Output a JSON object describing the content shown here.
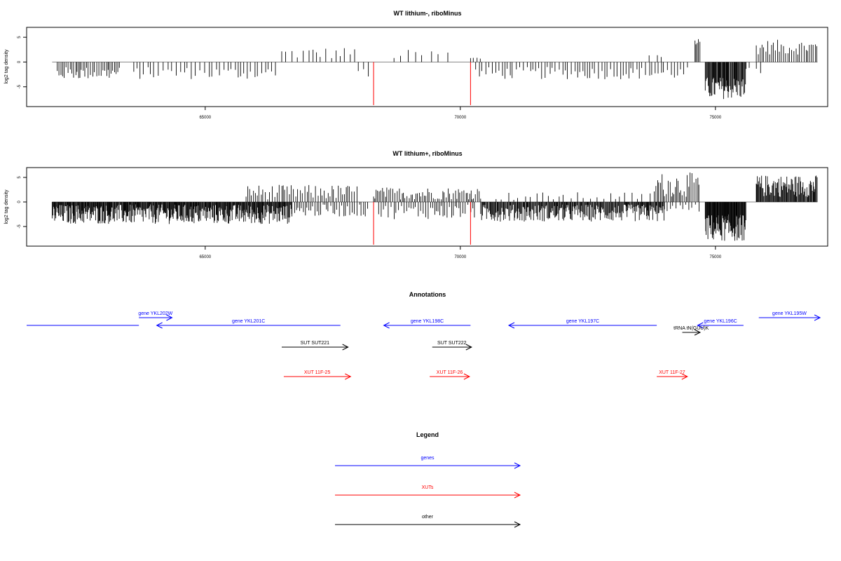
{
  "chart_data": [
    {
      "type": "bar",
      "title": "WT lithium-, riboMinus",
      "xlabel": "",
      "ylabel": "log2 tag density",
      "xlim": [
        61500,
        77200
      ],
      "ylim": [
        -9,
        7
      ],
      "xticks": [
        65000,
        70000,
        75000
      ],
      "xtick_labels": [
        "65000",
        "70000",
        "75000"
      ],
      "yticks": [
        -5,
        0,
        5
      ],
      "ytick_labels": [
        "-5",
        "0",
        "5"
      ],
      "baseline": {
        "x": [
          62000,
          77000
        ]
      },
      "markers": [
        68300,
        70200
      ],
      "series": [
        {
          "pattern": "signal_pos",
          "color": "#000000",
          "regions": [
            {
              "from": 66500,
              "to": 67950,
              "min": 0.5,
              "max": 3.0,
              "step": 90
            },
            {
              "from": 68700,
              "to": 69800,
              "min": 0.5,
              "max": 2.5,
              "step": 150
            },
            {
              "from": 70200,
              "to": 70450,
              "min": 0.5,
              "max": 1.0,
              "step": 80
            },
            {
              "from": 73700,
              "to": 74000,
              "min": 0.5,
              "max": 2.5,
              "step": 120
            },
            {
              "from": 74600,
              "to": 74700,
              "min": 3.0,
              "max": 5.0,
              "step": 30
            },
            {
              "from": 75800,
              "to": 77000,
              "min": 1.5,
              "max": 4.5,
              "step": 35
            }
          ]
        },
        {
          "pattern": "signal_neg",
          "color": "#000000",
          "regions": [
            {
              "from": 62100,
              "to": 63350,
              "min": -3.5,
              "max": -1.0,
              "step": 35
            },
            {
              "from": 63600,
              "to": 66400,
              "min": -3.5,
              "max": -1.0,
              "step": 70
            },
            {
              "from": 68000,
              "to": 68200,
              "min": -3.0,
              "max": -1.0,
              "step": 100
            },
            {
              "from": 70300,
              "to": 74500,
              "min": -3.5,
              "max": -1.0,
              "step": 60
            },
            {
              "from": 74800,
              "to": 75600,
              "min": -7.5,
              "max": -3.0,
              "step": 14
            },
            {
              "from": 75600,
              "to": 75900,
              "min": -2.5,
              "max": -1.0,
              "step": 100
            }
          ]
        }
      ]
    },
    {
      "type": "bar",
      "title": "WT lithium+, riboMinus",
      "xlabel": "",
      "ylabel": "log2 tag density",
      "xlim": [
        61500,
        77200
      ],
      "ylim": [
        -9,
        7
      ],
      "xticks": [
        65000,
        70000,
        75000
      ],
      "xtick_labels": [
        "65000",
        "70000",
        "75000"
      ],
      "yticks": [
        -5,
        0,
        5
      ],
      "ytick_labels": [
        "-5",
        "0",
        "5"
      ],
      "baseline": {
        "x": [
          62000,
          77000
        ]
      },
      "markers": [
        68300,
        70200
      ],
      "series": [
        {
          "pattern": "signal_pos",
          "color": "#000000",
          "regions": [
            {
              "from": 65800,
              "to": 68000,
              "min": 0.5,
              "max": 3.5,
              "step": 40
            },
            {
              "from": 68300,
              "to": 70400,
              "min": 0.5,
              "max": 3.0,
              "step": 35
            },
            {
              "from": 70700,
              "to": 73800,
              "min": 0.3,
              "max": 2.0,
              "step": 120
            },
            {
              "from": 73800,
              "to": 74700,
              "min": 1.0,
              "max": 6.0,
              "step": 30
            },
            {
              "from": 75800,
              "to": 77000,
              "min": 1.0,
              "max": 5.5,
              "step": 14
            }
          ]
        },
        {
          "pattern": "signal_neg",
          "color": "#000000",
          "regions": [
            {
              "from": 62000,
              "to": 66700,
              "min": -4.5,
              "max": -0.5,
              "step": 12
            },
            {
              "from": 66700,
              "to": 68200,
              "min": -3.0,
              "max": -0.5,
              "step": 40
            },
            {
              "from": 68400,
              "to": 70300,
              "min": -3.5,
              "max": -0.5,
              "step": 45
            },
            {
              "from": 70400,
              "to": 74000,
              "min": -4.0,
              "max": -0.5,
              "step": 14
            },
            {
              "from": 74000,
              "to": 74700,
              "min": -2.0,
              "max": -0.5,
              "step": 60
            },
            {
              "from": 74800,
              "to": 75600,
              "min": -8.0,
              "max": -2.5,
              "step": 10
            }
          ]
        }
      ]
    }
  ],
  "annotations": {
    "title": "Annotations",
    "xlim": [
      61500,
      77200
    ],
    "features": [
      {
        "label": "",
        "color": "#0000ff",
        "start": 61500,
        "end": 63700,
        "dir": "none",
        "row": 1
      },
      {
        "label": "gene YKL202W",
        "color": "#0000ff",
        "start": 63700,
        "end": 64350,
        "dir": "right",
        "row": 0
      },
      {
        "label": "gene YKL201C",
        "color": "#0000ff",
        "start": 64050,
        "end": 67650,
        "dir": "left",
        "row": 1
      },
      {
        "label": "gene YKL198C",
        "color": "#0000ff",
        "start": 68500,
        "end": 70200,
        "dir": "left",
        "row": 1
      },
      {
        "label": "gene YKL197C",
        "color": "#0000ff",
        "start": 70950,
        "end": 73850,
        "dir": "left",
        "row": 1
      },
      {
        "label": "gene YKL196C",
        "color": "#0000ff",
        "start": 74650,
        "end": 75550,
        "dir": "left",
        "row": 1
      },
      {
        "label": "gene YKL195W",
        "color": "#0000ff",
        "start": 75850,
        "end": 77050,
        "dir": "right",
        "row": 0
      },
      {
        "label": "tRNA tN(GUU)K",
        "color": "#000000",
        "start": 74350,
        "end": 74700,
        "dir": "right",
        "row": 2
      },
      {
        "label": "SUT SUT221",
        "color": "#000000",
        "start": 66500,
        "end": 67800,
        "dir": "right",
        "row": 3
      },
      {
        "label": "SUT SUT222",
        "color": "#000000",
        "start": 69450,
        "end": 70220,
        "dir": "right",
        "row": 3
      },
      {
        "label": "XUT 11F-25",
        "color": "#ff0000",
        "start": 66540,
        "end": 67850,
        "dir": "right",
        "row": 4
      },
      {
        "label": "XUT 11F-26",
        "color": "#ff0000",
        "start": 69400,
        "end": 70180,
        "dir": "right",
        "row": 4
      },
      {
        "label": "XUT 11F-27",
        "color": "#ff0000",
        "start": 73850,
        "end": 74450,
        "dir": "right",
        "row": 4
      }
    ]
  },
  "legend": {
    "title": "Legend",
    "items": [
      {
        "label": "genes",
        "color": "#0000ff"
      },
      {
        "label": "XUTs",
        "color": "#ff0000"
      },
      {
        "label": "other",
        "color": "#000000"
      }
    ]
  }
}
